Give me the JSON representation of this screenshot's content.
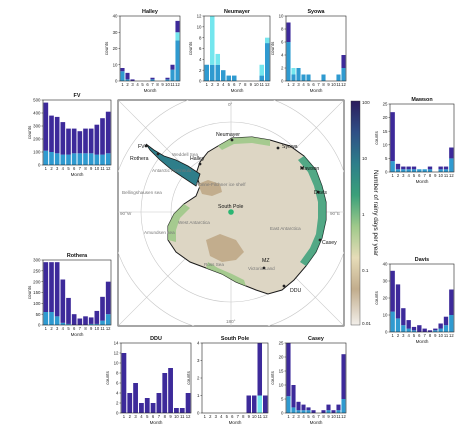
{
  "figure": {
    "map": {
      "station_labels": [
        "Neumayer",
        "Syowa",
        "Mawson",
        "Davis",
        "Casey",
        "DDU",
        "MZ",
        "Rothera",
        "FV",
        "Halley",
        "South Pole"
      ],
      "region_labels": [
        "Weddell Sea",
        "Bellingshausen sea",
        "Amundsen sea",
        "Ross Sea",
        "Victoria Land",
        "West Antarctica",
        "East Antarctica",
        "Ronne-Filchner ice shelf",
        "Antarctic Peninsula"
      ],
      "longitude_labels": [
        "0°",
        "90°E",
        "180°",
        "90°W"
      ],
      "colorbar": {
        "label": "Number of rainy days per year",
        "ticks": [
          "100",
          "10",
          "1",
          "0.1",
          "0.01"
        ],
        "colors": [
          "#2c1d5c",
          "#2f4f86",
          "#2e7e8a",
          "#3aa07a",
          "#9fc98a",
          "#e6dcb8",
          "#c2ad8d",
          "#f2efea"
        ]
      }
    },
    "series_colors": {
      "dark": "#3d2a9a",
      "mid": "#2f9ad0",
      "light": "#74e6ee"
    }
  },
  "chart_data": [
    {
      "type": "bar",
      "title": "Halley",
      "xlabel": "Month",
      "ylabel": "counts",
      "categories": [
        "1",
        "2",
        "3",
        "4",
        "5",
        "6",
        "7",
        "8",
        "9",
        "10",
        "11",
        "12"
      ],
      "ylim": [
        0,
        40
      ],
      "yticks": [
        0,
        10,
        20,
        30,
        40
      ],
      "series": [
        {
          "values": [
            2,
            4,
            1,
            0,
            0,
            0,
            1,
            0,
            0,
            1,
            3,
            7
          ]
        },
        {
          "values": [
            6,
            1,
            0,
            0,
            0,
            0,
            1,
            0,
            0,
            1,
            7,
            25
          ]
        },
        {
          "values": [
            0,
            0,
            0,
            0,
            0,
            0,
            0,
            0,
            0,
            0,
            0,
            5
          ]
        }
      ]
    },
    {
      "type": "bar",
      "title": "Neumayer",
      "xlabel": "Month",
      "ylabel": "counts",
      "categories": [
        "1",
        "2",
        "3",
        "4",
        "5",
        "6",
        "7",
        "8",
        "9",
        "10",
        "11",
        "12"
      ],
      "ylim": [
        0,
        12
      ],
      "yticks": [
        0,
        2,
        4,
        6,
        8,
        10,
        12
      ],
      "series": [
        {
          "values": [
            0,
            0,
            0,
            0,
            0,
            0,
            0,
            0,
            0,
            0,
            0,
            0
          ]
        },
        {
          "values": [
            3,
            3,
            3,
            2,
            1,
            1,
            0,
            0,
            0,
            0,
            1,
            7
          ]
        },
        {
          "values": [
            0,
            9,
            2,
            0,
            0,
            0,
            0,
            0,
            0,
            0,
            2,
            1
          ]
        }
      ]
    },
    {
      "type": "bar",
      "title": "Syowa",
      "xlabel": "Month",
      "ylabel": "counts",
      "categories": [
        "1",
        "2",
        "3",
        "4",
        "5",
        "6",
        "7",
        "8",
        "9",
        "10",
        "11",
        "12"
      ],
      "ylim": [
        0,
        10
      ],
      "yticks": [
        0,
        2,
        4,
        6,
        8,
        10
      ],
      "series": [
        {
          "values": [
            3,
            0,
            0,
            0,
            0,
            0,
            0,
            0,
            0,
            0,
            0,
            2
          ]
        },
        {
          "values": [
            6,
            1,
            2,
            1,
            1,
            0,
            0,
            1,
            0,
            0,
            1,
            2
          ]
        },
        {
          "values": [
            0,
            1,
            0,
            0,
            0,
            0,
            0,
            0,
            0,
            0,
            0,
            0
          ]
        }
      ]
    },
    {
      "type": "bar",
      "title": "FV",
      "xlabel": "Month",
      "ylabel": "counts",
      "categories": [
        "1",
        "2",
        "3",
        "4",
        "5",
        "6",
        "7",
        "8",
        "9",
        "10",
        "11",
        "12"
      ],
      "ylim": [
        0,
        500
      ],
      "yticks": [
        0,
        100,
        200,
        300,
        400,
        500
      ],
      "series": [
        {
          "values": [
            370,
            280,
            280,
            250,
            200,
            190,
            170,
            190,
            190,
            230,
            280,
            320
          ]
        },
        {
          "values": [
            110,
            100,
            90,
            80,
            80,
            90,
            90,
            90,
            90,
            80,
            80,
            90
          ]
        },
        {
          "values": [
            0,
            0,
            0,
            0,
            0,
            0,
            0,
            0,
            0,
            0,
            0,
            0
          ]
        }
      ]
    },
    {
      "type": "bar",
      "title": "Mawson",
      "xlabel": "Month",
      "ylabel": "counts",
      "categories": [
        "1",
        "2",
        "3",
        "4",
        "5",
        "6",
        "7",
        "8",
        "9",
        "10",
        "11",
        "12"
      ],
      "ylim": [
        0,
        25
      ],
      "yticks": [
        0,
        5,
        10,
        15,
        20,
        25
      ],
      "series": [
        {
          "values": [
            18,
            2,
            1,
            1,
            1,
            0,
            0,
            1,
            0,
            1,
            1,
            4
          ]
        },
        {
          "values": [
            4,
            1,
            1,
            1,
            1,
            1,
            1,
            1,
            0,
            1,
            1,
            5
          ]
        },
        {
          "values": [
            0,
            0,
            0,
            0,
            0,
            0,
            0,
            0,
            0,
            0,
            0,
            0
          ]
        }
      ]
    },
    {
      "type": "bar",
      "title": "Rothera",
      "xlabel": "Month",
      "ylabel": "counts",
      "categories": [
        "1",
        "2",
        "3",
        "4",
        "5",
        "6",
        "7",
        "8",
        "9",
        "10",
        "11",
        "12"
      ],
      "ylim": [
        0,
        300
      ],
      "yticks": [
        0,
        50,
        100,
        150,
        200,
        250,
        300
      ],
      "series": [
        {
          "values": [
            230,
            230,
            250,
            200,
            120,
            50,
            30,
            40,
            30,
            60,
            110,
            150
          ]
        },
        {
          "values": [
            60,
            60,
            40,
            10,
            5,
            0,
            0,
            0,
            5,
            5,
            20,
            50
          ]
        },
        {
          "values": [
            0,
            0,
            0,
            0,
            0,
            0,
            0,
            0,
            0,
            0,
            0,
            0
          ]
        }
      ]
    },
    {
      "type": "bar",
      "title": "Davis",
      "xlabel": "Month",
      "ylabel": "counts",
      "categories": [
        "1",
        "2",
        "3",
        "4",
        "5",
        "6",
        "7",
        "8",
        "9",
        "10",
        "11",
        "12"
      ],
      "ylim": [
        0,
        40
      ],
      "yticks": [
        0,
        10,
        20,
        30,
        40
      ],
      "series": [
        {
          "values": [
            24,
            20,
            10,
            5,
            2,
            4,
            2,
            1,
            1,
            3,
            5,
            15
          ]
        },
        {
          "values": [
            12,
            8,
            4,
            2,
            1,
            0,
            0,
            0,
            1,
            2,
            4,
            10
          ]
        },
        {
          "values": [
            0,
            0,
            0,
            0,
            0,
            0,
            0,
            0,
            0,
            0,
            0,
            0
          ]
        }
      ]
    },
    {
      "type": "bar",
      "title": "DDU",
      "xlabel": "Month",
      "ylabel": "counts",
      "categories": [
        "1",
        "2",
        "3",
        "4",
        "5",
        "6",
        "7",
        "8",
        "9",
        "10",
        "11",
        "12"
      ],
      "ylim": [
        0,
        14
      ],
      "yticks": [
        0,
        2,
        4,
        6,
        8,
        10,
        12,
        14
      ],
      "series": [
        {
          "values": [
            12,
            4,
            6,
            2,
            3,
            2,
            4,
            8,
            9,
            1,
            1,
            4
          ]
        },
        {
          "values": [
            0,
            0,
            0,
            0,
            0,
            0,
            0,
            0,
            0,
            0,
            0,
            0
          ]
        },
        {
          "values": [
            0,
            0,
            0,
            0,
            0,
            0,
            0,
            0,
            0,
            0,
            0,
            0
          ]
        }
      ]
    },
    {
      "type": "bar",
      "title": "South Pole",
      "xlabel": "Month",
      "ylabel": "counts",
      "categories": [
        "1",
        "2",
        "3",
        "4",
        "5",
        "6",
        "7",
        "8",
        "9",
        "10",
        "11",
        "12"
      ],
      "ylim": [
        0,
        4
      ],
      "yticks": [
        0,
        1,
        2,
        3,
        4
      ],
      "series": [
        {
          "values": [
            0,
            0,
            0,
            0,
            0,
            0,
            0,
            0,
            1,
            1,
            3,
            1
          ]
        },
        {
          "values": [
            0,
            0,
            0,
            0,
            0,
            0,
            0,
            0,
            0,
            0,
            0,
            0
          ]
        },
        {
          "values": [
            0,
            0,
            0,
            0,
            0,
            0,
            0,
            0,
            0,
            0,
            1,
            0
          ]
        }
      ]
    },
    {
      "type": "bar",
      "title": "Casey",
      "xlabel": "Month",
      "ylabel": "counts",
      "categories": [
        "1",
        "2",
        "3",
        "4",
        "5",
        "6",
        "7",
        "8",
        "9",
        "10",
        "11",
        "12"
      ],
      "ylim": [
        0,
        25
      ],
      "yticks": [
        0,
        5,
        10,
        15,
        20,
        25
      ],
      "series": [
        {
          "values": [
            19,
            8,
            3,
            2,
            1,
            1,
            0,
            1,
            2,
            1,
            2,
            16
          ]
        },
        {
          "values": [
            6,
            2,
            1,
            1,
            1,
            0,
            0,
            0,
            1,
            0,
            1,
            5
          ]
        },
        {
          "values": [
            0,
            0,
            0,
            0,
            0,
            0,
            0,
            0,
            0,
            0,
            0,
            0
          ]
        }
      ]
    }
  ]
}
